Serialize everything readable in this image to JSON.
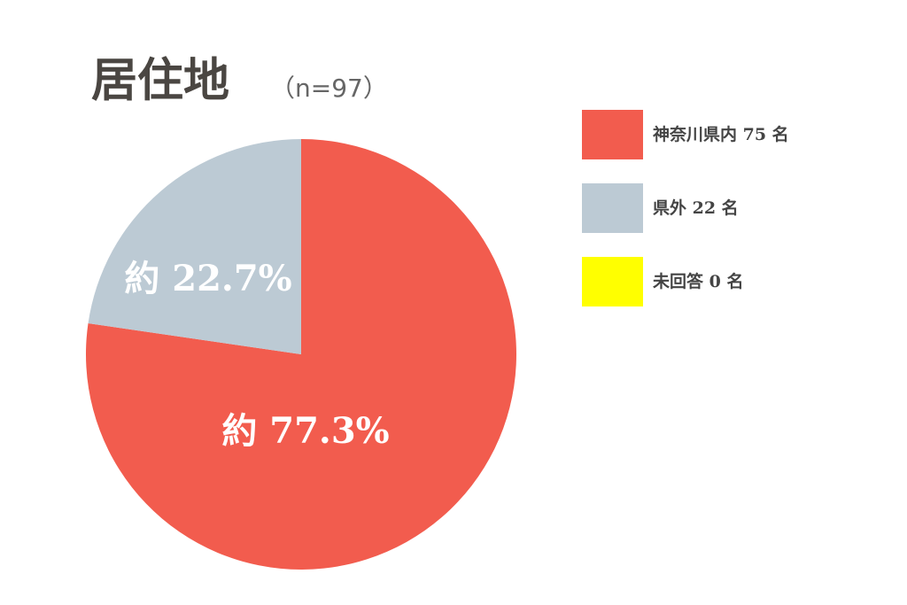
{
  "chart_data": {
    "type": "pie",
    "title": "居住地",
    "subtitle": "（n=97）",
    "categories": [
      "神奈川県内 75 名",
      "県外 22 名",
      "未回答 0 名"
    ],
    "values": [
      77.3,
      22.7,
      0
    ],
    "value_labels": [
      "約 77.3%",
      "約 22.7%",
      null
    ],
    "colors": [
      "#f25c4e",
      "#bccad4",
      "#ffff00"
    ]
  }
}
